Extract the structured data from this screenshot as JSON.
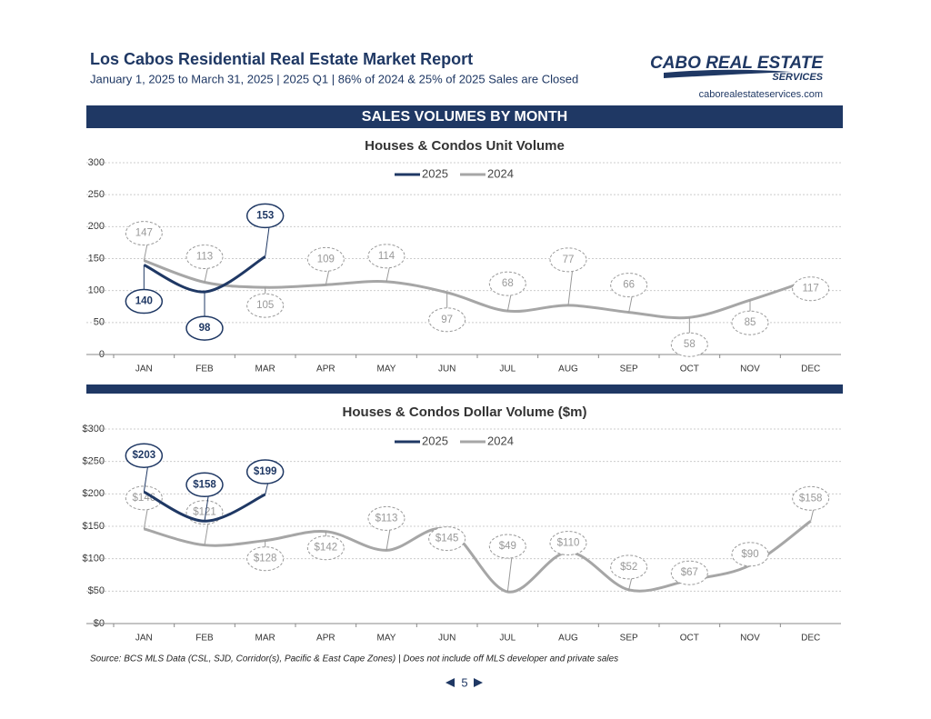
{
  "header": {
    "title": "Los Cabos Residential Real Estate Market Report",
    "subtitle": "January 1, 2025 to March 31, 2025 | 2025 Q1 | 86% of 2024 & 25% of 2025 Sales are Closed",
    "logo_line1": "CABO REAL ESTATE",
    "logo_line2": "SERVICES",
    "website": "caborealestateservices.com"
  },
  "banner": "SALES VOLUMES BY MONTH",
  "chart_data": [
    {
      "type": "line",
      "title": "Houses & Condos Unit Volume",
      "categories": [
        "JAN",
        "FEB",
        "MAR",
        "APR",
        "MAY",
        "JUN",
        "JUL",
        "AUG",
        "SEP",
        "OCT",
        "NOV",
        "DEC"
      ],
      "series": [
        {
          "name": "2025",
          "color": "#1f3864",
          "values": [
            140,
            98,
            153,
            null,
            null,
            null,
            null,
            null,
            null,
            null,
            null,
            null
          ]
        },
        {
          "name": "2024",
          "color": "#a6a6a6",
          "values": [
            147,
            113,
            105,
            109,
            114,
            97,
            68,
            77,
            66,
            58,
            85,
            117
          ]
        }
      ],
      "ylim": [
        0,
        300
      ],
      "yticks": [
        0,
        50,
        100,
        150,
        200,
        250,
        300
      ],
      "grid": true,
      "legend": "top"
    },
    {
      "type": "line",
      "title": "Houses & Condos Dollar Volume ($m)",
      "categories": [
        "JAN",
        "FEB",
        "MAR",
        "APR",
        "MAY",
        "JUN",
        "JUL",
        "AUG",
        "SEP",
        "OCT",
        "NOV",
        "DEC"
      ],
      "series": [
        {
          "name": "2025",
          "color": "#1f3864",
          "values": [
            203,
            158,
            199,
            null,
            null,
            null,
            null,
            null,
            null,
            null,
            null,
            null
          ],
          "value_labels": [
            "$203",
            "$158",
            "$199",
            null,
            null,
            null,
            null,
            null,
            null,
            null,
            null,
            null
          ]
        },
        {
          "name": "2024",
          "color": "#a6a6a6",
          "values": [
            146,
            121,
            128,
            142,
            113,
            145,
            49,
            110,
            52,
            67,
            90,
            158
          ],
          "value_labels": [
            "$146",
            "$121",
            "$128",
            "$142",
            "$113",
            "$145",
            "$49",
            "$110",
            "$52",
            "$67",
            "$90",
            "$158"
          ]
        }
      ],
      "ylim": [
        0,
        300
      ],
      "yticks": [
        {
          "value": 0,
          "label": "$0"
        },
        {
          "value": 50,
          "label": "$50"
        },
        {
          "value": 100,
          "label": "$100"
        },
        {
          "value": 150,
          "label": "$150"
        },
        {
          "value": 200,
          "label": "$200"
        },
        {
          "value": 250,
          "label": "$250"
        },
        {
          "value": 300,
          "label": "$300"
        }
      ],
      "grid": true,
      "legend": "top"
    }
  ],
  "source": "Source:  BCS MLS Data (CSL, SJD, Corridor(s), Pacific & East Cape Zones) | Does not include off MLS developer and private sales",
  "page_number": "5"
}
